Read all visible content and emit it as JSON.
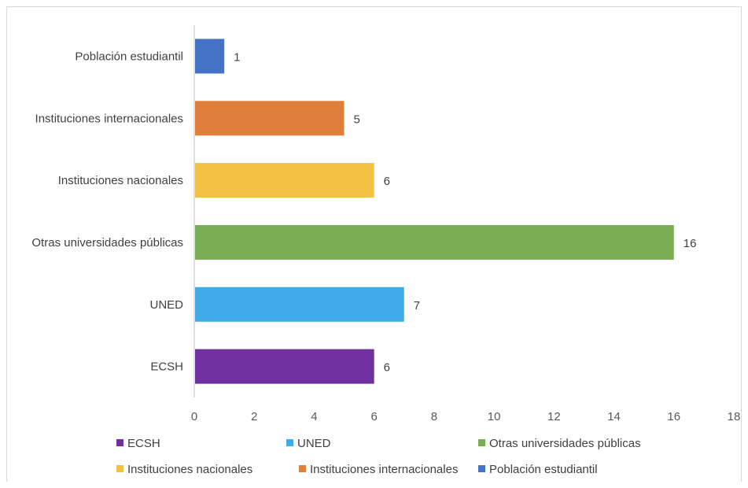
{
  "chart_data": {
    "type": "bar",
    "orientation": "horizontal",
    "categories": [
      "ECSH",
      "UNED",
      "Otras universidades públicas",
      "Instituciones nacionales",
      "Instituciones internacionales",
      "Población estudiantil"
    ],
    "values": [
      6,
      7,
      16,
      6,
      5,
      1
    ],
    "colors": [
      "#7030A0",
      "#41ABE8",
      "#7AAD55",
      "#F4C242",
      "#E07E3C",
      "#4472C4"
    ],
    "xlim": [
      0,
      18
    ],
    "xticks": [
      0,
      2,
      4,
      6,
      8,
      10,
      12,
      14,
      16,
      18
    ],
    "data_labels": true,
    "grid": false,
    "legend_position": "bottom",
    "legend": [
      "ECSH",
      "UNED",
      "Otras universidades públicas",
      "Instituciones nacionales",
      "Instituciones internacionales",
      "Población estudiantil"
    ]
  }
}
